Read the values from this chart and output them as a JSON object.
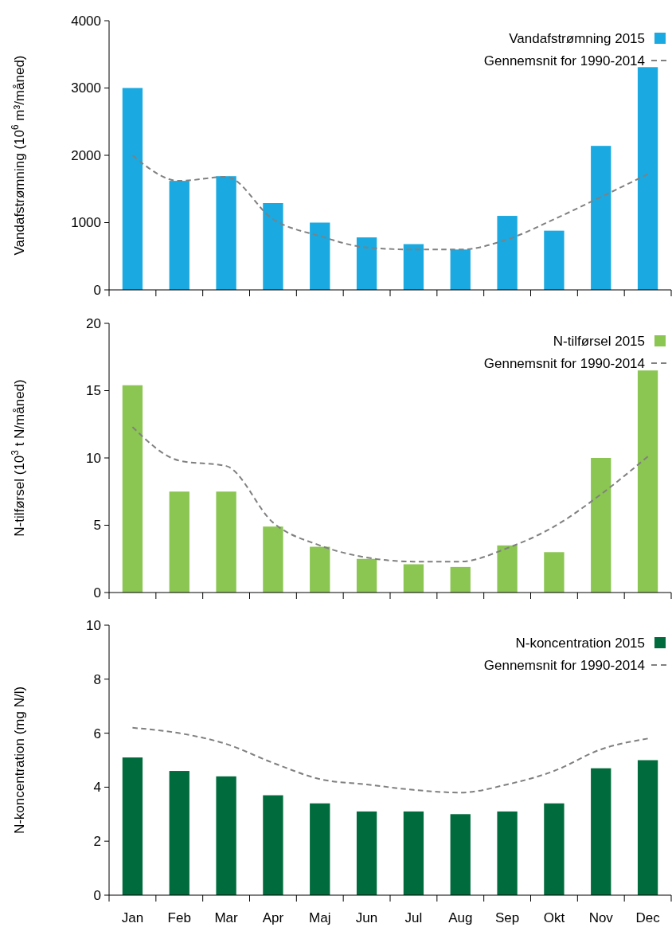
{
  "chart_data": [
    {
      "type": "bar",
      "ylabel": "Vandafstrømning (10$^{6}$ m³/måned)",
      "categories": [
        null,
        null,
        null,
        null,
        null,
        null,
        null,
        null,
        null,
        null,
        null,
        null
      ],
      "ylim": [
        0,
        4000
      ],
      "yticks": [
        0,
        1000,
        2000,
        3000,
        4000
      ],
      "tick_labels": "y",
      "legend": "top right",
      "series": [
        {
          "name": "Vandafstrømning 2015",
          "color": "#1aa9e0",
          "values": [
            3000,
            1620,
            1690,
            1290,
            1000,
            780,
            680,
            600,
            1100,
            880,
            2140,
            3310
          ]
        },
        {
          "name": "Gennemsnit for 1990-2014",
          "type": "line",
          "color": "#808080",
          "line_style": "dashed",
          "values": [
            2000,
            1620,
            1680,
            1050,
            800,
            630,
            600,
            600,
            750,
            1050,
            1380,
            1720
          ]
        }
      ]
    },
    {
      "type": "bar",
      "ylabel": "N-tilførsel (10$^{3}$ t N/måned)",
      "categories": [
        null,
        null,
        null,
        null,
        null,
        null,
        null,
        null,
        null,
        null,
        null,
        null
      ],
      "ylim": [
        0,
        20
      ],
      "yticks": [
        0,
        5,
        10,
        15,
        20
      ],
      "tick_labels": "y",
      "legend": "top right",
      "series": [
        {
          "name": "N-tilførsel 2015",
          "color": "#8bc552",
          "values": [
            15.4,
            7.5,
            7.5,
            4.9,
            3.4,
            2.5,
            2.1,
            1.9,
            3.5,
            3.0,
            10.0,
            16.5
          ]
        },
        {
          "name": "Gennemsnit for 1990-2014",
          "type": "line",
          "color": "#808080",
          "line_style": "dashed",
          "values": [
            12.3,
            9.8,
            9.4,
            5.2,
            3.5,
            2.6,
            2.3,
            2.3,
            3.3,
            4.9,
            7.3,
            10.1
          ]
        }
      ]
    },
    {
      "type": "bar",
      "ylabel": "N-koncentration (mg N/l)",
      "categories": [
        "Jan",
        "Feb",
        "Mar",
        "Apr",
        "Maj",
        "Jun",
        "Jul",
        "Aug",
        "Sep",
        "Okt",
        "Nov",
        "Dec"
      ],
      "ylim": [
        0,
        10
      ],
      "yticks": [
        0,
        2,
        4,
        6,
        8,
        10
      ],
      "legend": "top right",
      "series": [
        {
          "name": "N-koncentration 2015",
          "color": "#006b3c",
          "values": [
            5.1,
            4.6,
            4.4,
            3.7,
            3.4,
            3.1,
            3.1,
            3.0,
            3.1,
            3.4,
            4.7,
            5.0
          ]
        },
        {
          "name": "Gennemsnit for 1990-2014",
          "type": "line",
          "color": "#808080",
          "line_style": "dashed",
          "values": [
            6.2,
            6.0,
            5.6,
            4.9,
            4.3,
            4.1,
            3.9,
            3.8,
            4.1,
            4.6,
            5.4,
            5.8
          ]
        }
      ]
    }
  ]
}
